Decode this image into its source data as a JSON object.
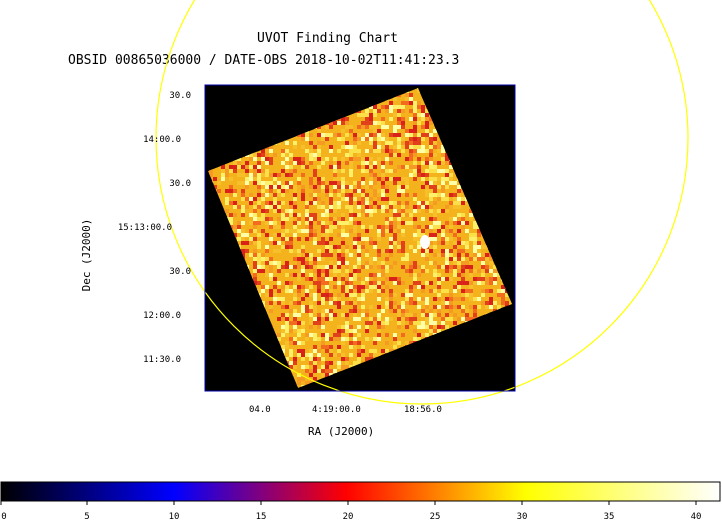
{
  "header": {
    "title": "UVOT Finding Chart",
    "subtitle": "OBSID 00865036000 / DATE-OBS 2018-10-02T11:41:23.3"
  },
  "axes": {
    "ylabel": "Dec (J2000)",
    "xlabel": "RA (J2000)",
    "yticks": [
      "30.0",
      "14:00.0",
      "30.0",
      "15:13:00.0",
      "30.0",
      "12:00.0",
      "11:30.0"
    ],
    "xticks": [
      "04.0",
      "4:19:00.0",
      "18:56.0"
    ]
  },
  "colorbar": {
    "ticks": [
      "0",
      "5",
      "10",
      "15",
      "20",
      "25",
      "30",
      "35",
      "40"
    ],
    "colors": [
      "#000000",
      "#0000ff",
      "#ff0000",
      "#ffff00",
      "#ffffff"
    ]
  },
  "colors": {
    "frame": "#0000aa",
    "circle": "#ffff00",
    "background": "#000000"
  }
}
